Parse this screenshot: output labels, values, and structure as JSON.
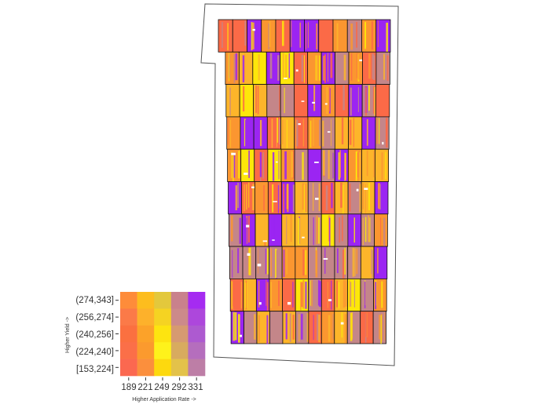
{
  "legend": {
    "yield_label": "Higher Yield ->",
    "rate_label": "Higher Application Rate ->",
    "yield_classes": [
      "(274,343]",
      "(256,274]",
      "(240,256]",
      "(224,240]",
      "[153,224]"
    ],
    "rate_classes": [
      "189",
      "221",
      "249",
      "292",
      "331"
    ],
    "colors": [
      [
        "#fe8c3a",
        "#fdbd1e",
        "#e3c83c",
        "#c9818c",
        "#a52bf1"
      ],
      [
        "#fb7a48",
        "#fdb12b",
        "#f5d322",
        "#cc8a8a",
        "#ad47dc"
      ],
      [
        "#fb7040",
        "#fca229",
        "#fde410",
        "#d69a71",
        "#ad5ad0"
      ],
      [
        "#fb6f48",
        "#fb9a2e",
        "#fef21b",
        "#d8ab5f",
        "#b56ebd"
      ],
      [
        "#fb6850",
        "#fb8f3d",
        "#fdd90e",
        "#e3c24a",
        "#bd7ea6"
      ]
    ]
  },
  "field_colors": {
    "purple": "#9b25f2",
    "orange_red": "#fb6a47",
    "orange": "#fb9630",
    "amber": "#fdb52a",
    "yellow": "#fde70a",
    "mauve": "#c48689"
  }
}
